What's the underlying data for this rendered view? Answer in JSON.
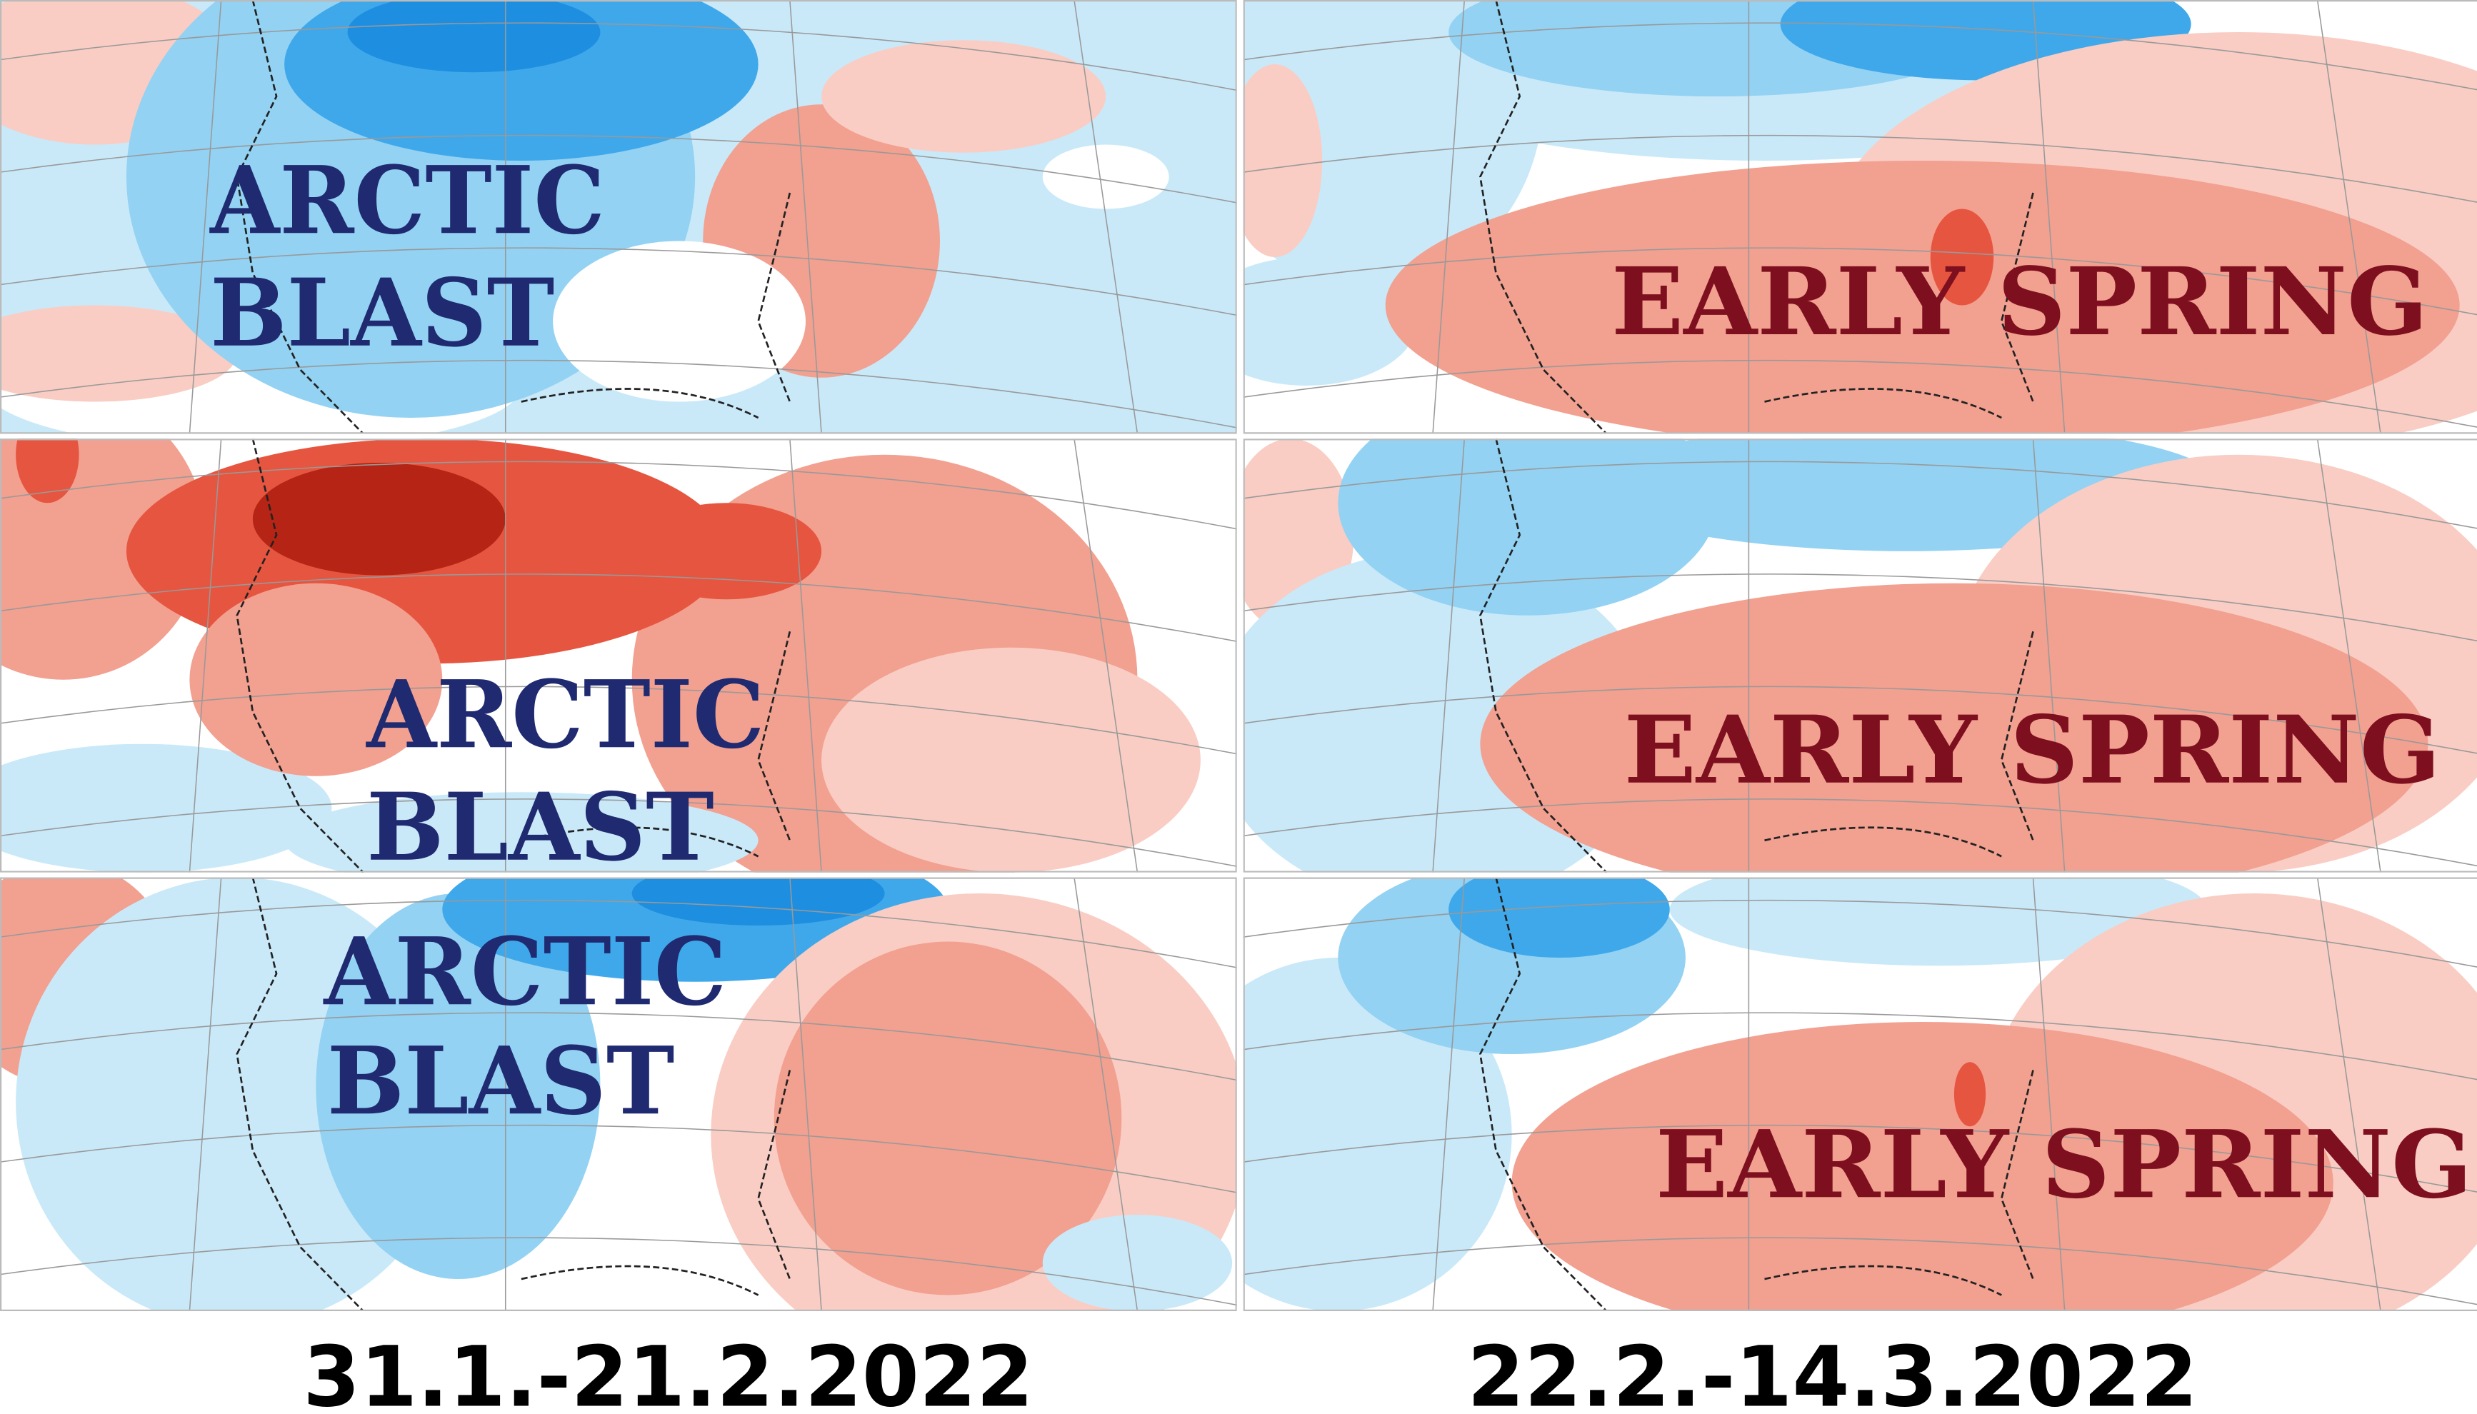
{
  "panels": [
    {
      "label_lines": [
        "ARCTIC",
        "BLAST"
      ]
    },
    {
      "label_lines": [
        "ARCTIC",
        "BLAST"
      ]
    },
    {
      "label_lines": [
        "ARCTIC",
        "BLAST"
      ]
    },
    {
      "label_lines": [
        "EARLY SPRING"
      ]
    },
    {
      "label_lines": [
        "EARLY SPRING"
      ]
    },
    {
      "label_lines": [
        "EARLY SPRING"
      ]
    }
  ],
  "periods": [
    "31.1.-21.2.2022",
    "22.2.-14.3.2022"
  ]
}
